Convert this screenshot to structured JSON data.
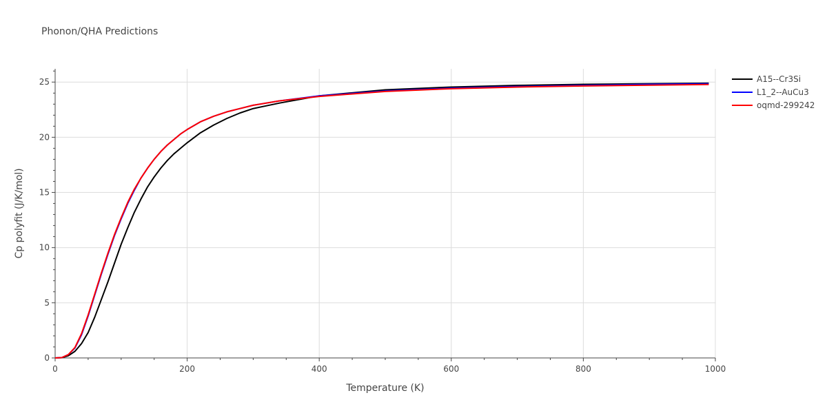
{
  "chart_data": {
    "type": "line",
    "title": "Phonon/QHA Predictions",
    "xlabel": "Temperature (K)",
    "ylabel": "Cp polyfit (J/K/mol)",
    "xlim": [
      0,
      1000
    ],
    "ylim": [
      0,
      26.2
    ],
    "xticks": [
      0,
      200,
      400,
      600,
      800,
      1000
    ],
    "yticks": [
      0,
      5,
      10,
      15,
      20,
      25
    ],
    "grid": true,
    "legend_position": "top-right",
    "series": [
      {
        "name": "A15--Cr3Si",
        "color": "#000000",
        "x": [
          0,
          10,
          20,
          30,
          40,
          50,
          60,
          70,
          80,
          90,
          100,
          110,
          120,
          130,
          140,
          150,
          160,
          170,
          180,
          190,
          200,
          220,
          240,
          260,
          280,
          300,
          340,
          400,
          500,
          600,
          700,
          800,
          900,
          990
        ],
        "y": [
          0,
          0.02,
          0.2,
          0.6,
          1.3,
          2.3,
          3.7,
          5.3,
          6.9,
          8.6,
          10.3,
          11.8,
          13.2,
          14.4,
          15.5,
          16.4,
          17.2,
          17.9,
          18.5,
          19.0,
          19.5,
          20.4,
          21.1,
          21.7,
          22.2,
          22.6,
          23.1,
          23.75,
          24.3,
          24.55,
          24.7,
          24.8,
          24.85,
          24.9
        ]
      },
      {
        "name": "L1_2--AuCu3",
        "color": "#0000ff",
        "x": [
          0,
          10,
          20,
          30,
          40,
          50,
          60,
          70,
          80,
          90,
          100,
          110,
          120,
          130,
          140,
          150,
          160,
          170,
          180,
          190,
          200,
          220,
          240,
          260,
          280,
          300,
          340,
          400,
          500,
          600,
          700,
          800,
          900,
          990
        ],
        "y": [
          0,
          0.03,
          0.3,
          0.9,
          2.1,
          3.8,
          5.7,
          7.6,
          9.4,
          11.1,
          12.6,
          14.0,
          15.2,
          16.3,
          17.2,
          18.0,
          18.7,
          19.3,
          19.8,
          20.3,
          20.7,
          21.4,
          21.9,
          22.3,
          22.6,
          22.9,
          23.3,
          23.75,
          24.2,
          24.45,
          24.6,
          24.7,
          24.8,
          24.85
        ]
      },
      {
        "name": "oqmd-299242",
        "color": "#ff0000",
        "x": [
          0,
          10,
          20,
          30,
          40,
          50,
          60,
          70,
          80,
          90,
          100,
          110,
          120,
          130,
          140,
          150,
          160,
          170,
          180,
          190,
          200,
          220,
          240,
          260,
          280,
          300,
          340,
          400,
          500,
          600,
          700,
          800,
          900,
          990
        ],
        "y": [
          0,
          0.03,
          0.3,
          0.95,
          2.2,
          3.9,
          5.8,
          7.7,
          9.5,
          11.2,
          12.7,
          14.1,
          15.3,
          16.3,
          17.2,
          18.0,
          18.7,
          19.3,
          19.8,
          20.3,
          20.7,
          21.4,
          21.9,
          22.3,
          22.6,
          22.9,
          23.3,
          23.7,
          24.15,
          24.4,
          24.55,
          24.65,
          24.72,
          24.78
        ]
      }
    ]
  }
}
